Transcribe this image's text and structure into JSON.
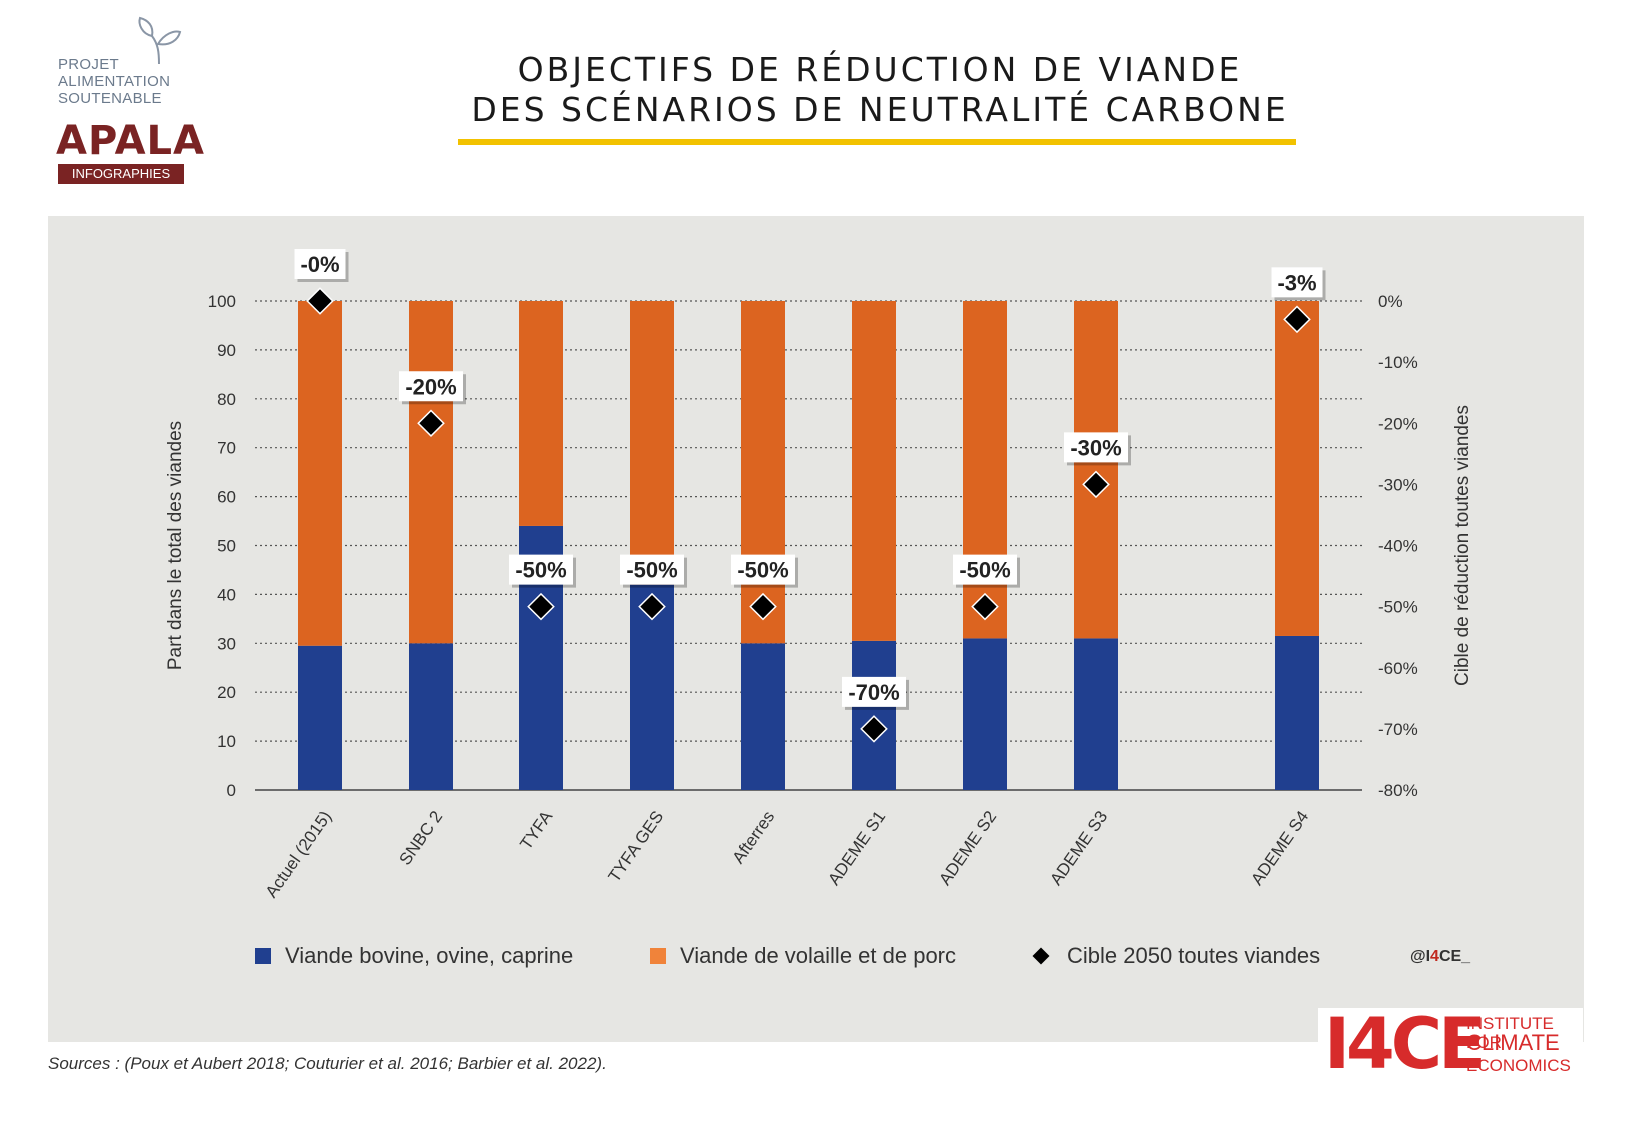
{
  "logo": {
    "lines": [
      "PROJET",
      "ALIMENTATION",
      "SOUTENABLE"
    ],
    "brand": "APALA",
    "tagline": "INFOGRAPHIES"
  },
  "title": {
    "line1": "OBJECTIFS DE RÉDUCTION DE VIANDE",
    "line2": "DES SCÉNARIOS DE NEUTRALITÉ CARBONE"
  },
  "colors": {
    "bovine": "#203f8f",
    "poultry": "#dc6420",
    "target": "#000000",
    "accent": "#f2c200",
    "panel": "#e6e6e3"
  },
  "chart_data": {
    "type": "bar",
    "stacked": true,
    "categories": [
      "Actuel (2015)",
      "SNBC 2",
      "TYFA",
      "TYFA GES",
      "Afterres",
      "ADEME S1",
      "ADEME S2",
      "ADEME S3",
      "ADEME S4"
    ],
    "series": [
      {
        "name": "Viande bovine, ovine, caprine",
        "values": [
          29.5,
          30,
          54,
          42,
          30,
          30.5,
          31,
          31,
          31.5
        ]
      },
      {
        "name": "Viande de volaille et de porc",
        "values": [
          70.5,
          70,
          46,
          58,
          70,
          69.5,
          69,
          69,
          68.5
        ]
      }
    ],
    "target": {
      "name": "Cible 2050 toutes viandes",
      "values": [
        0,
        -20,
        -50,
        -50,
        -50,
        -70,
        -50,
        -30,
        -3
      ],
      "labels": [
        "-0%",
        "-20%",
        "-50%",
        "-50%",
        "-50%",
        "-70%",
        "-50%",
        "-30%",
        "-3%"
      ]
    },
    "ylabel": "Part dans le total des viandes",
    "y2label": "Cible de réduction toutes viandes",
    "ylim": [
      0,
      100
    ],
    "y2lim": [
      -80,
      0
    ],
    "yticks": [
      "0",
      "10",
      "20",
      "30",
      "40",
      "50",
      "60",
      "70",
      "80",
      "90",
      "100"
    ],
    "y2ticks": [
      "0%",
      "-10%",
      "-20%",
      "-30%",
      "-40%",
      "-50%",
      "-60%",
      "-70%",
      "-80%"
    ],
    "grid": true,
    "legend_position": "bottom"
  },
  "legend": {
    "items": [
      "Viande bovine, ovine, caprine",
      "Viande de volaille et de porc",
      "Cible 2050 toutes viandes"
    ]
  },
  "handle": {
    "prefix": "@I",
    "four": "4",
    "suffix": "CE_"
  },
  "sources": "Sources : (Poux et Aubert 2018; Couturier et al. 2016; Barbier et al. 2022).",
  "i4ce": {
    "mark": "I4CE",
    "lines": [
      "INSTITUTE FOR",
      "CLIMATE",
      "ECONOMICS"
    ]
  }
}
